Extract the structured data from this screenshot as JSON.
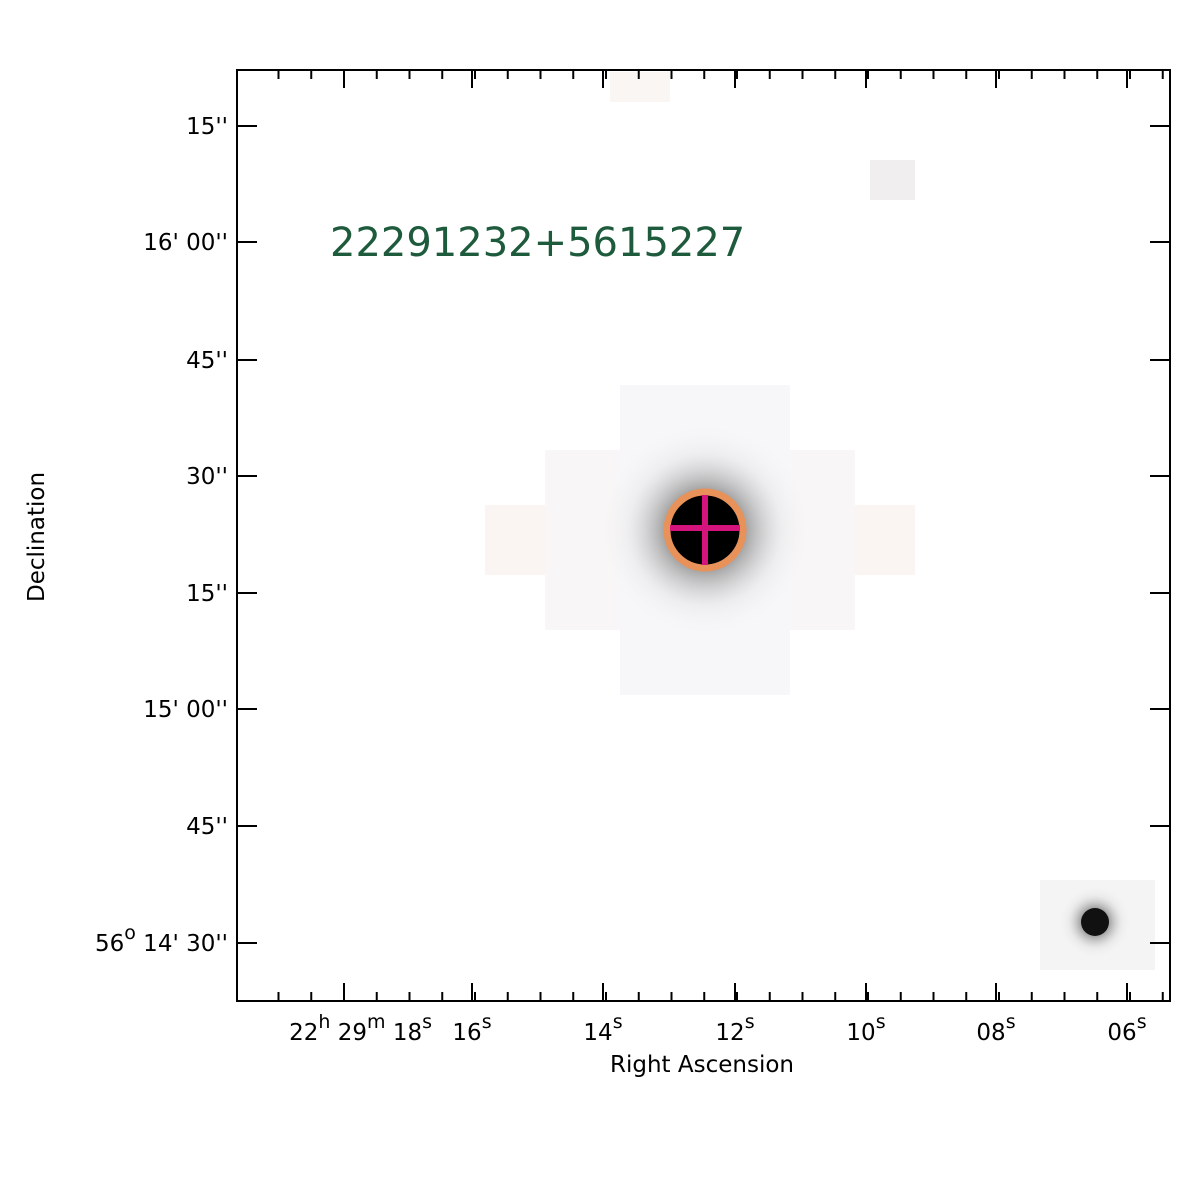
{
  "title": "22291232+5615227",
  "x_label": "Right Ascension",
  "y_label": "Declination",
  "x_ticks": [
    {
      "parts": [
        "22",
        "h",
        " 29",
        "m",
        " 18",
        "s"
      ]
    },
    {
      "parts": [
        "16",
        "s"
      ]
    },
    {
      "parts": [
        "14",
        "s"
      ]
    },
    {
      "parts": [
        "12",
        "s"
      ]
    },
    {
      "parts": [
        "10",
        "s"
      ]
    },
    {
      "parts": [
        "08",
        "s"
      ]
    },
    {
      "parts": [
        "06",
        "s"
      ]
    }
  ],
  "y_ticks": [
    {
      "parts": [
        "15''"
      ]
    },
    {
      "parts": [
        "16' 00''"
      ]
    },
    {
      "parts": [
        "45''"
      ]
    },
    {
      "parts": [
        "30''"
      ]
    },
    {
      "parts": [
        "15''"
      ]
    },
    {
      "parts": [
        "15' 00''"
      ]
    },
    {
      "parts": [
        "45''"
      ]
    },
    {
      "parts": [
        "56",
        "o",
        " 14' 30''"
      ]
    }
  ]
}
